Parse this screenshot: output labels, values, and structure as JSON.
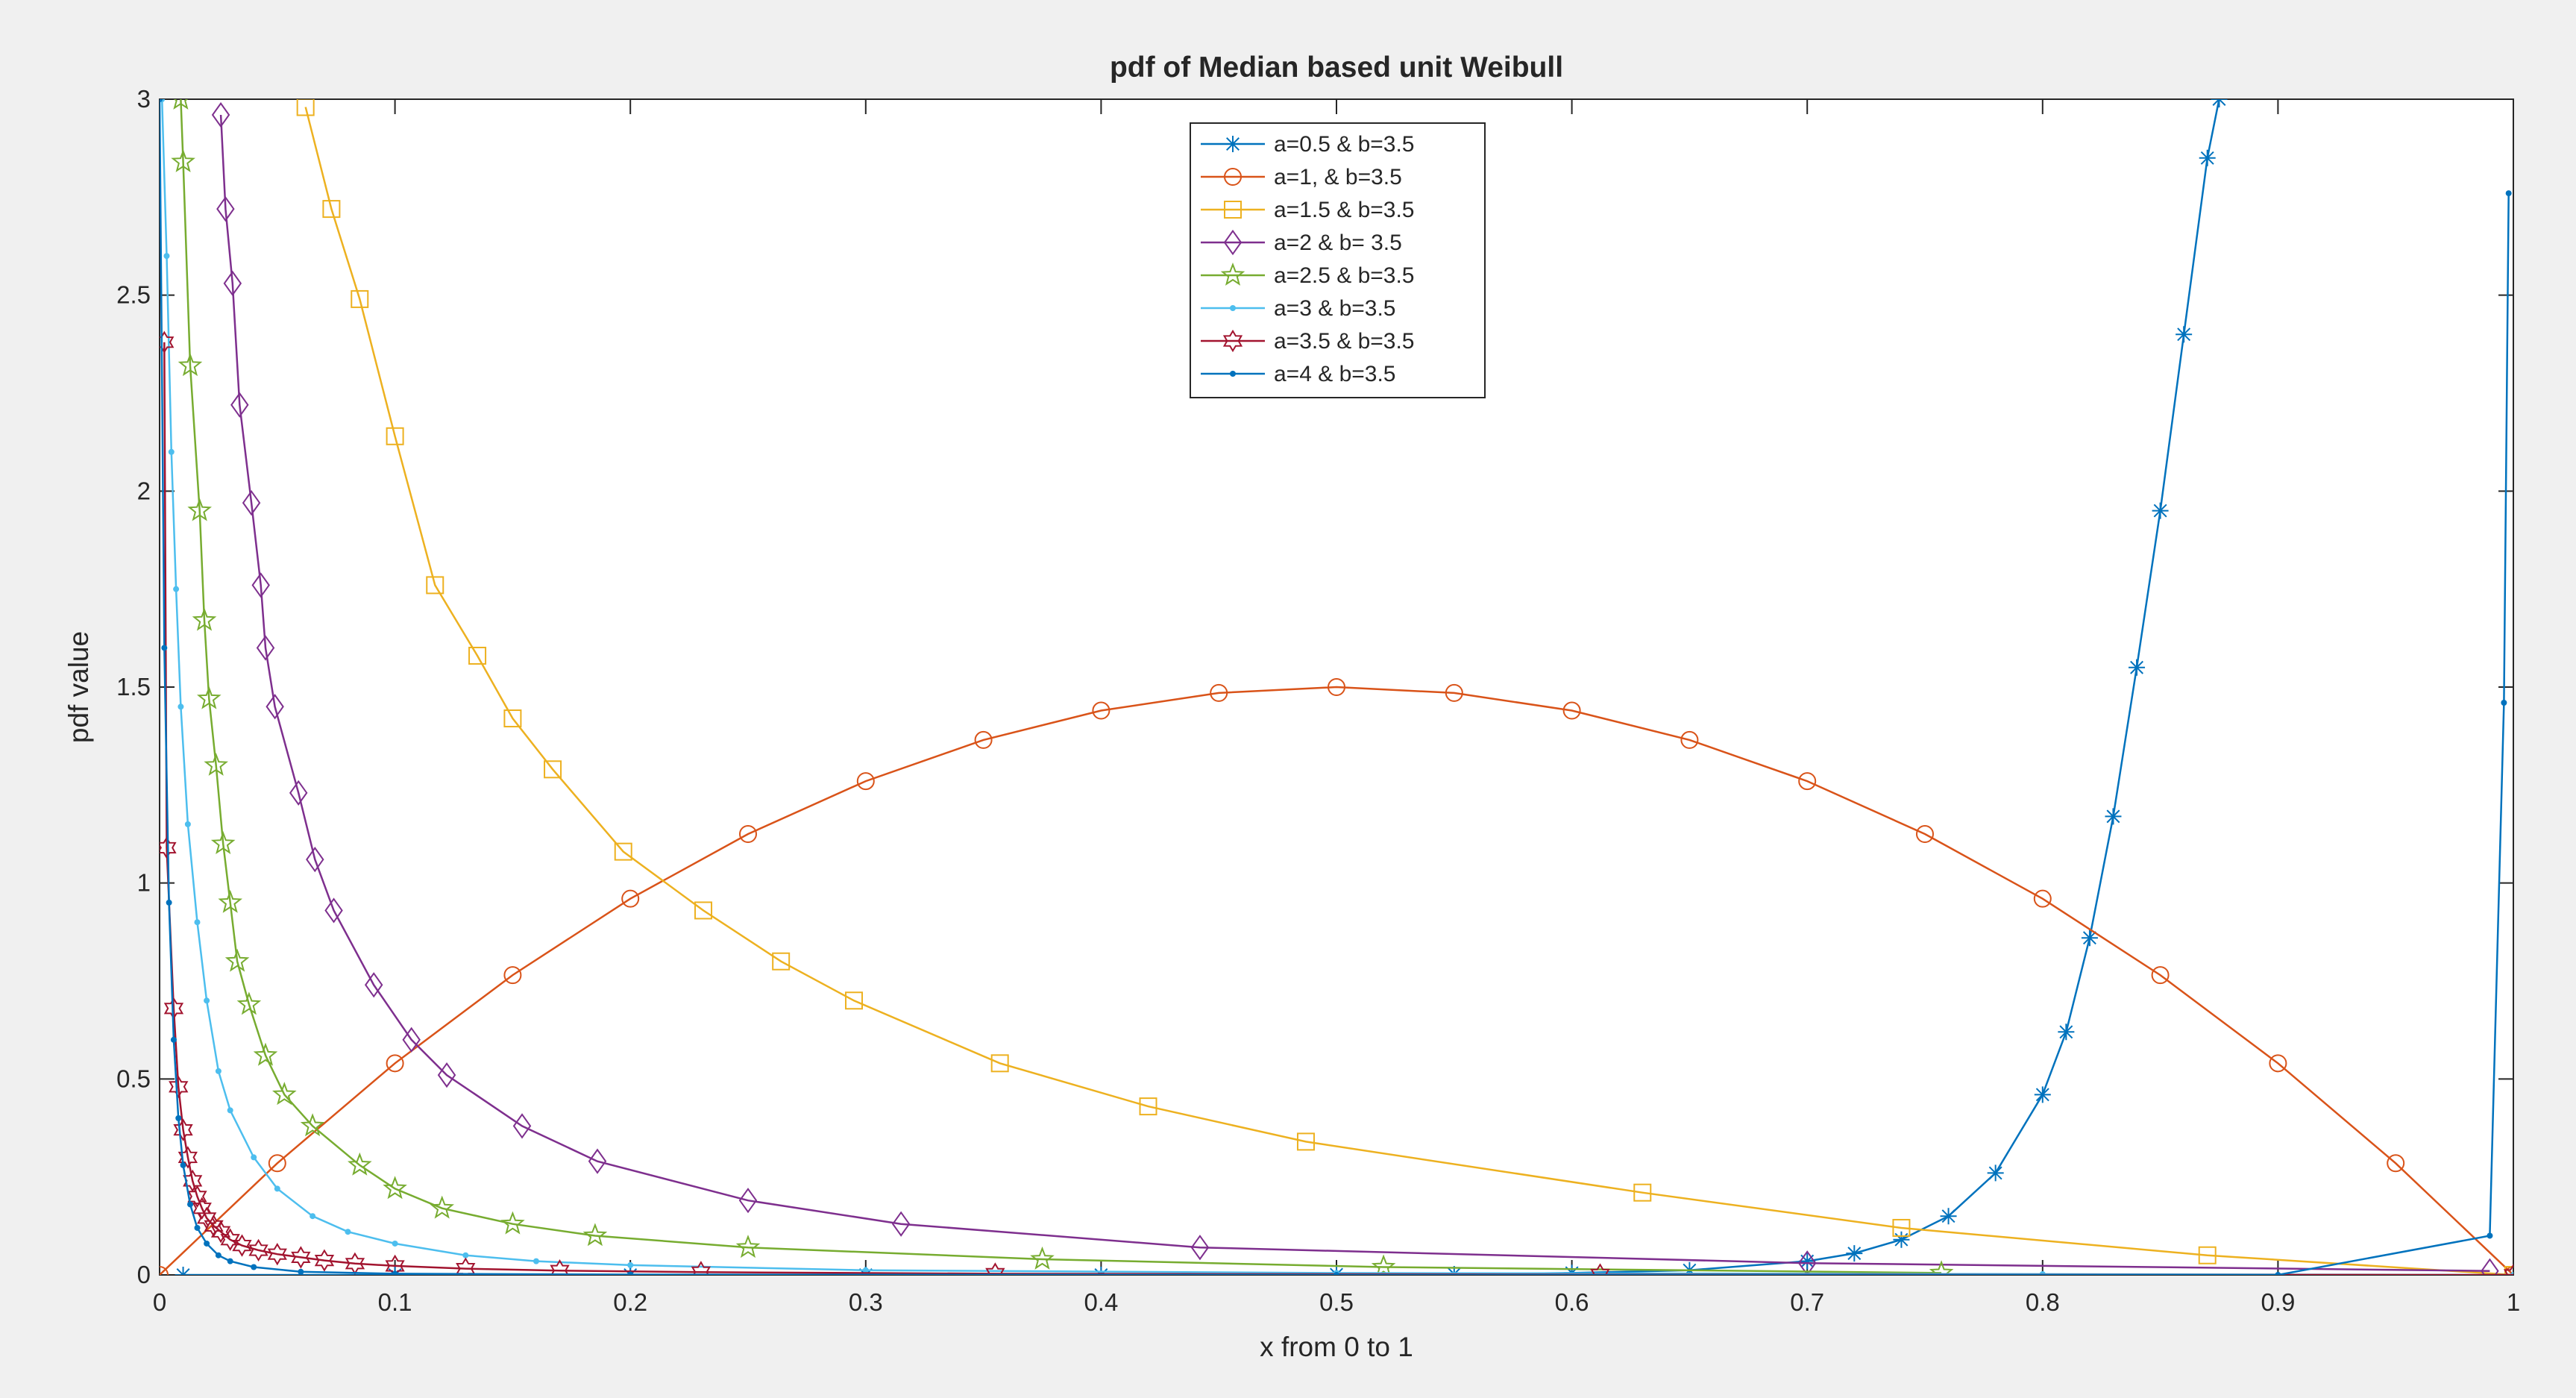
{
  "chart_data": {
    "type": "line",
    "title": "pdf of Median based unit Weibull",
    "xlabel": "x from 0 to 1",
    "ylabel": "pdf value",
    "xlim": [
      0,
      1
    ],
    "ylim": [
      0,
      3
    ],
    "x_ticks": [
      0,
      0.1,
      0.2,
      0.3,
      0.4,
      0.5,
      0.6,
      0.7,
      0.8,
      0.9,
      1
    ],
    "x_tick_labels": [
      "0",
      "0.1",
      "0.2",
      "0.3",
      "0.4",
      "0.5",
      "0.6",
      "0.7",
      "0.8",
      "0.9",
      "1"
    ],
    "y_ticks": [
      0,
      0.5,
      1,
      1.5,
      2,
      2.5,
      3
    ],
    "y_tick_labels": [
      "0",
      "0.5",
      "1",
      "1.5",
      "2",
      "2.5",
      "3"
    ],
    "grid": false,
    "legend_position": "top-center",
    "series": [
      {
        "name": "a=0.5 & b=3.5",
        "color": "#0072bd",
        "marker": "asterisk",
        "x": [
          0.01,
          0.1,
          0.2,
          0.3,
          0.4,
          0.5,
          0.55,
          0.6,
          0.65,
          0.7,
          0.72,
          0.74,
          0.76,
          0.78,
          0.8,
          0.81,
          0.82,
          0.83,
          0.84,
          0.85,
          0.86,
          0.87,
          0.875
        ],
        "y": [
          0.0,
          0.0,
          0.0,
          0.0,
          0.0,
          0.001,
          0.002,
          0.005,
          0.012,
          0.035,
          0.055,
          0.09,
          0.15,
          0.26,
          0.46,
          0.62,
          0.86,
          1.17,
          1.55,
          1.95,
          2.4,
          2.85,
          3.0
        ]
      },
      {
        "name": "a=1, & b=3.5",
        "color": "#d95319",
        "marker": "circle",
        "x": [
          0,
          0.05,
          0.1,
          0.15,
          0.2,
          0.25,
          0.3,
          0.35,
          0.4,
          0.45,
          0.5,
          0.55,
          0.6,
          0.65,
          0.7,
          0.75,
          0.8,
          0.85,
          0.9,
          0.95,
          1
        ],
        "y": [
          0,
          0.285,
          0.54,
          0.765,
          0.96,
          1.125,
          1.26,
          1.365,
          1.44,
          1.485,
          1.5,
          1.485,
          1.44,
          1.365,
          1.26,
          1.125,
          0.96,
          0.765,
          0.54,
          0.285,
          0
        ]
      },
      {
        "name": "a=1.5 & b=3.5",
        "color": "#edb120",
        "marker": "square",
        "x": [
          0.062,
          0.073,
          0.085,
          0.1,
          0.117,
          0.135,
          0.15,
          0.167,
          0.197,
          0.231,
          0.264,
          0.295,
          0.357,
          0.42,
          0.487,
          0.63,
          0.74,
          0.87,
          1.0
        ],
        "y": [
          2.98,
          2.72,
          2.49,
          2.14,
          1.76,
          1.58,
          1.42,
          1.29,
          1.08,
          0.93,
          0.8,
          0.7,
          0.54,
          0.43,
          0.34,
          0.21,
          0.12,
          0.05,
          0.0
        ]
      },
      {
        "name": "a=2 & b= 3.5",
        "color": "#7e2f8e",
        "marker": "diamond",
        "x": [
          0.026,
          0.028,
          0.031,
          0.034,
          0.039,
          0.043,
          0.045,
          0.049,
          0.059,
          0.066,
          0.074,
          0.091,
          0.107,
          0.122,
          0.154,
          0.186,
          0.25,
          0.315,
          0.442,
          0.7,
          0.99
        ],
        "y": [
          2.96,
          2.72,
          2.53,
          2.22,
          1.97,
          1.76,
          1.6,
          1.45,
          1.23,
          1.06,
          0.93,
          0.74,
          0.6,
          0.51,
          0.38,
          0.29,
          0.19,
          0.13,
          0.07,
          0.03,
          0.01
        ]
      },
      {
        "name": "a=2.5 & b=3.5",
        "color": "#77ac30",
        "marker": "pentagram",
        "x": [
          0.009,
          0.01,
          0.013,
          0.017,
          0.019,
          0.021,
          0.024,
          0.027,
          0.03,
          0.033,
          0.038,
          0.045,
          0.053,
          0.065,
          0.085,
          0.1,
          0.12,
          0.15,
          0.185,
          0.25,
          0.375,
          0.52,
          0.757
        ],
        "y": [
          3.0,
          2.84,
          2.32,
          1.95,
          1.67,
          1.47,
          1.3,
          1.1,
          0.95,
          0.8,
          0.69,
          0.56,
          0.46,
          0.38,
          0.28,
          0.22,
          0.17,
          0.13,
          0.1,
          0.07,
          0.04,
          0.02,
          0.005
        ]
      },
      {
        "name": "a=3 & b=3.5",
        "color": "#4dbeee",
        "marker": "point",
        "x": [
          0.001,
          0.003,
          0.005,
          0.007,
          0.009,
          0.012,
          0.016,
          0.02,
          0.025,
          0.03,
          0.04,
          0.05,
          0.065,
          0.08,
          0.1,
          0.13,
          0.16,
          0.2,
          0.3,
          0.5,
          0.8,
          1.0
        ],
        "y": [
          3.0,
          2.6,
          2.1,
          1.75,
          1.45,
          1.15,
          0.9,
          0.7,
          0.52,
          0.42,
          0.3,
          0.22,
          0.15,
          0.11,
          0.08,
          0.05,
          0.035,
          0.025,
          0.012,
          0.005,
          0.002,
          0.0
        ]
      },
      {
        "name": "a=3.5 & b=3.5",
        "color": "#a2142f",
        "marker": "hexagram",
        "x": [
          0.002,
          0.003,
          0.006,
          0.008,
          0.01,
          0.012,
          0.014,
          0.016,
          0.018,
          0.02,
          0.023,
          0.026,
          0.03,
          0.035,
          0.042,
          0.05,
          0.06,
          0.07,
          0.083,
          0.1,
          0.13,
          0.17,
          0.23,
          0.355,
          0.612,
          1.0
        ],
        "y": [
          2.38,
          1.09,
          0.68,
          0.48,
          0.37,
          0.3,
          0.24,
          0.2,
          0.17,
          0.145,
          0.125,
          0.11,
          0.09,
          0.075,
          0.063,
          0.053,
          0.045,
          0.037,
          0.029,
          0.023,
          0.016,
          0.011,
          0.007,
          0.003,
          0.001,
          0.0
        ]
      },
      {
        "name": "a=4 & b=3.5",
        "color": "#0072bd",
        "marker": "point",
        "x": [
          0.0,
          0.002,
          0.004,
          0.006,
          0.008,
          0.01,
          0.013,
          0.016,
          0.02,
          0.025,
          0.03,
          0.04,
          0.06,
          0.1,
          0.2,
          0.5,
          0.9,
          0.99,
          0.996,
          0.998
        ],
        "y": [
          3.0,
          1.6,
          0.95,
          0.6,
          0.4,
          0.28,
          0.18,
          0.12,
          0.08,
          0.05,
          0.035,
          0.02,
          0.008,
          0.003,
          0.001,
          0.0,
          0.0,
          0.1,
          1.46,
          2.76
        ]
      }
    ]
  }
}
